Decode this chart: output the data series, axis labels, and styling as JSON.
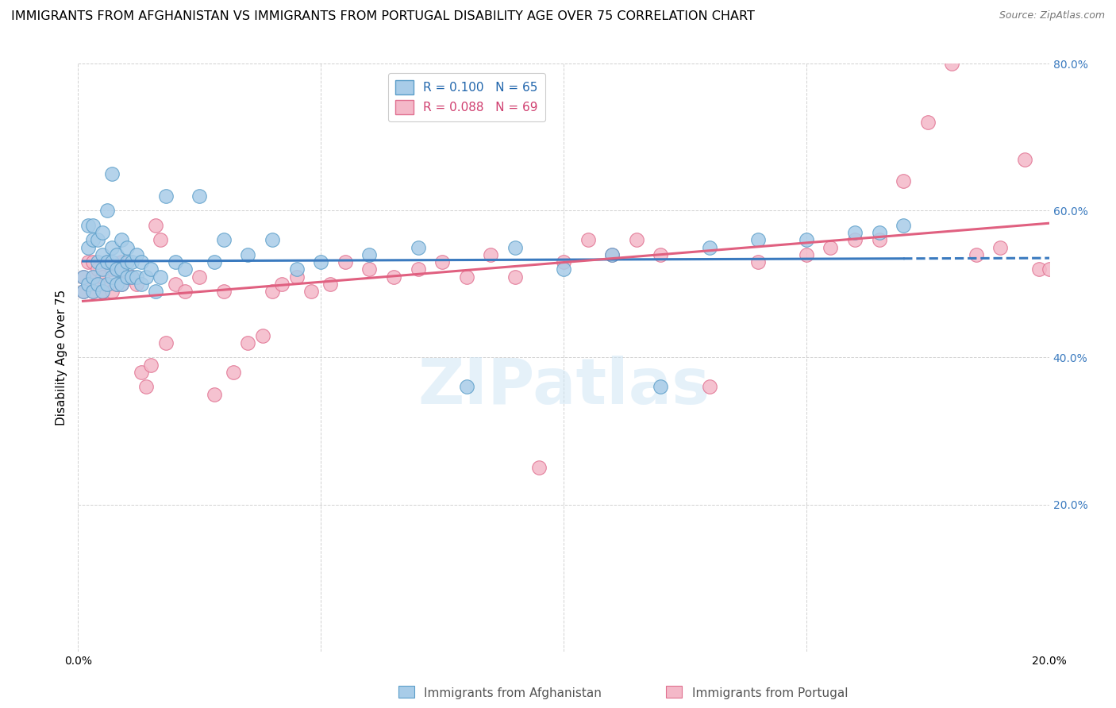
{
  "title": "IMMIGRANTS FROM AFGHANISTAN VS IMMIGRANTS FROM PORTUGAL DISABILITY AGE OVER 75 CORRELATION CHART",
  "source": "Source: ZipAtlas.com",
  "ylabel": "Disability Age Over 75",
  "R_blue": 0.1,
  "N_blue": 65,
  "R_pink": 0.088,
  "N_pink": 69,
  "xlim": [
    0.0,
    0.2
  ],
  "ylim": [
    0.0,
    0.8
  ],
  "xticks": [
    0.0,
    0.05,
    0.1,
    0.15,
    0.2
  ],
  "yticks": [
    0.0,
    0.2,
    0.4,
    0.6,
    0.8
  ],
  "footer_labels": [
    "Immigrants from Afghanistan",
    "Immigrants from Portugal"
  ],
  "color_blue_fill": "#a8cce8",
  "color_blue_edge": "#5b9ec9",
  "color_pink_fill": "#f4b8c8",
  "color_pink_edge": "#e07090",
  "color_blue_line": "#3a7abf",
  "color_pink_line": "#e06080",
  "title_fontsize": 11.5,
  "axis_label_fontsize": 11,
  "tick_fontsize": 10,
  "blue_x": [
    0.001,
    0.001,
    0.002,
    0.002,
    0.002,
    0.003,
    0.003,
    0.003,
    0.003,
    0.004,
    0.004,
    0.004,
    0.005,
    0.005,
    0.005,
    0.005,
    0.006,
    0.006,
    0.006,
    0.007,
    0.007,
    0.007,
    0.007,
    0.008,
    0.008,
    0.008,
    0.009,
    0.009,
    0.009,
    0.01,
    0.01,
    0.01,
    0.011,
    0.011,
    0.012,
    0.012,
    0.013,
    0.013,
    0.014,
    0.015,
    0.016,
    0.017,
    0.018,
    0.02,
    0.022,
    0.025,
    0.028,
    0.03,
    0.035,
    0.04,
    0.045,
    0.05,
    0.06,
    0.07,
    0.08,
    0.09,
    0.1,
    0.11,
    0.12,
    0.13,
    0.14,
    0.15,
    0.16,
    0.165,
    0.17
  ],
  "blue_y": [
    0.49,
    0.51,
    0.5,
    0.55,
    0.58,
    0.49,
    0.51,
    0.56,
    0.58,
    0.5,
    0.53,
    0.56,
    0.49,
    0.52,
    0.54,
    0.57,
    0.5,
    0.53,
    0.6,
    0.51,
    0.53,
    0.55,
    0.65,
    0.5,
    0.52,
    0.54,
    0.5,
    0.52,
    0.56,
    0.51,
    0.53,
    0.55,
    0.51,
    0.53,
    0.51,
    0.54,
    0.5,
    0.53,
    0.51,
    0.52,
    0.49,
    0.51,
    0.62,
    0.53,
    0.52,
    0.62,
    0.53,
    0.56,
    0.54,
    0.56,
    0.52,
    0.53,
    0.54,
    0.55,
    0.36,
    0.55,
    0.52,
    0.54,
    0.36,
    0.55,
    0.56,
    0.56,
    0.57,
    0.57,
    0.58
  ],
  "pink_x": [
    0.001,
    0.001,
    0.002,
    0.002,
    0.003,
    0.003,
    0.003,
    0.004,
    0.004,
    0.005,
    0.005,
    0.006,
    0.006,
    0.007,
    0.007,
    0.008,
    0.008,
    0.009,
    0.009,
    0.01,
    0.011,
    0.012,
    0.013,
    0.014,
    0.015,
    0.016,
    0.017,
    0.018,
    0.02,
    0.022,
    0.025,
    0.028,
    0.03,
    0.032,
    0.035,
    0.038,
    0.04,
    0.042,
    0.045,
    0.048,
    0.052,
    0.055,
    0.06,
    0.065,
    0.07,
    0.075,
    0.08,
    0.085,
    0.09,
    0.095,
    0.1,
    0.105,
    0.11,
    0.115,
    0.12,
    0.13,
    0.14,
    0.15,
    0.155,
    0.16,
    0.165,
    0.17,
    0.175,
    0.18,
    0.185,
    0.19,
    0.195,
    0.198,
    0.2
  ],
  "pink_y": [
    0.49,
    0.51,
    0.5,
    0.53,
    0.49,
    0.51,
    0.53,
    0.5,
    0.52,
    0.49,
    0.51,
    0.5,
    0.53,
    0.49,
    0.52,
    0.5,
    0.52,
    0.5,
    0.53,
    0.51,
    0.51,
    0.5,
    0.38,
    0.36,
    0.39,
    0.58,
    0.56,
    0.42,
    0.5,
    0.49,
    0.51,
    0.35,
    0.49,
    0.38,
    0.42,
    0.43,
    0.49,
    0.5,
    0.51,
    0.49,
    0.5,
    0.53,
    0.52,
    0.51,
    0.52,
    0.53,
    0.51,
    0.54,
    0.51,
    0.25,
    0.53,
    0.56,
    0.54,
    0.56,
    0.54,
    0.36,
    0.53,
    0.54,
    0.55,
    0.56,
    0.56,
    0.64,
    0.72,
    0.8,
    0.54,
    0.55,
    0.67,
    0.52,
    0.52
  ]
}
